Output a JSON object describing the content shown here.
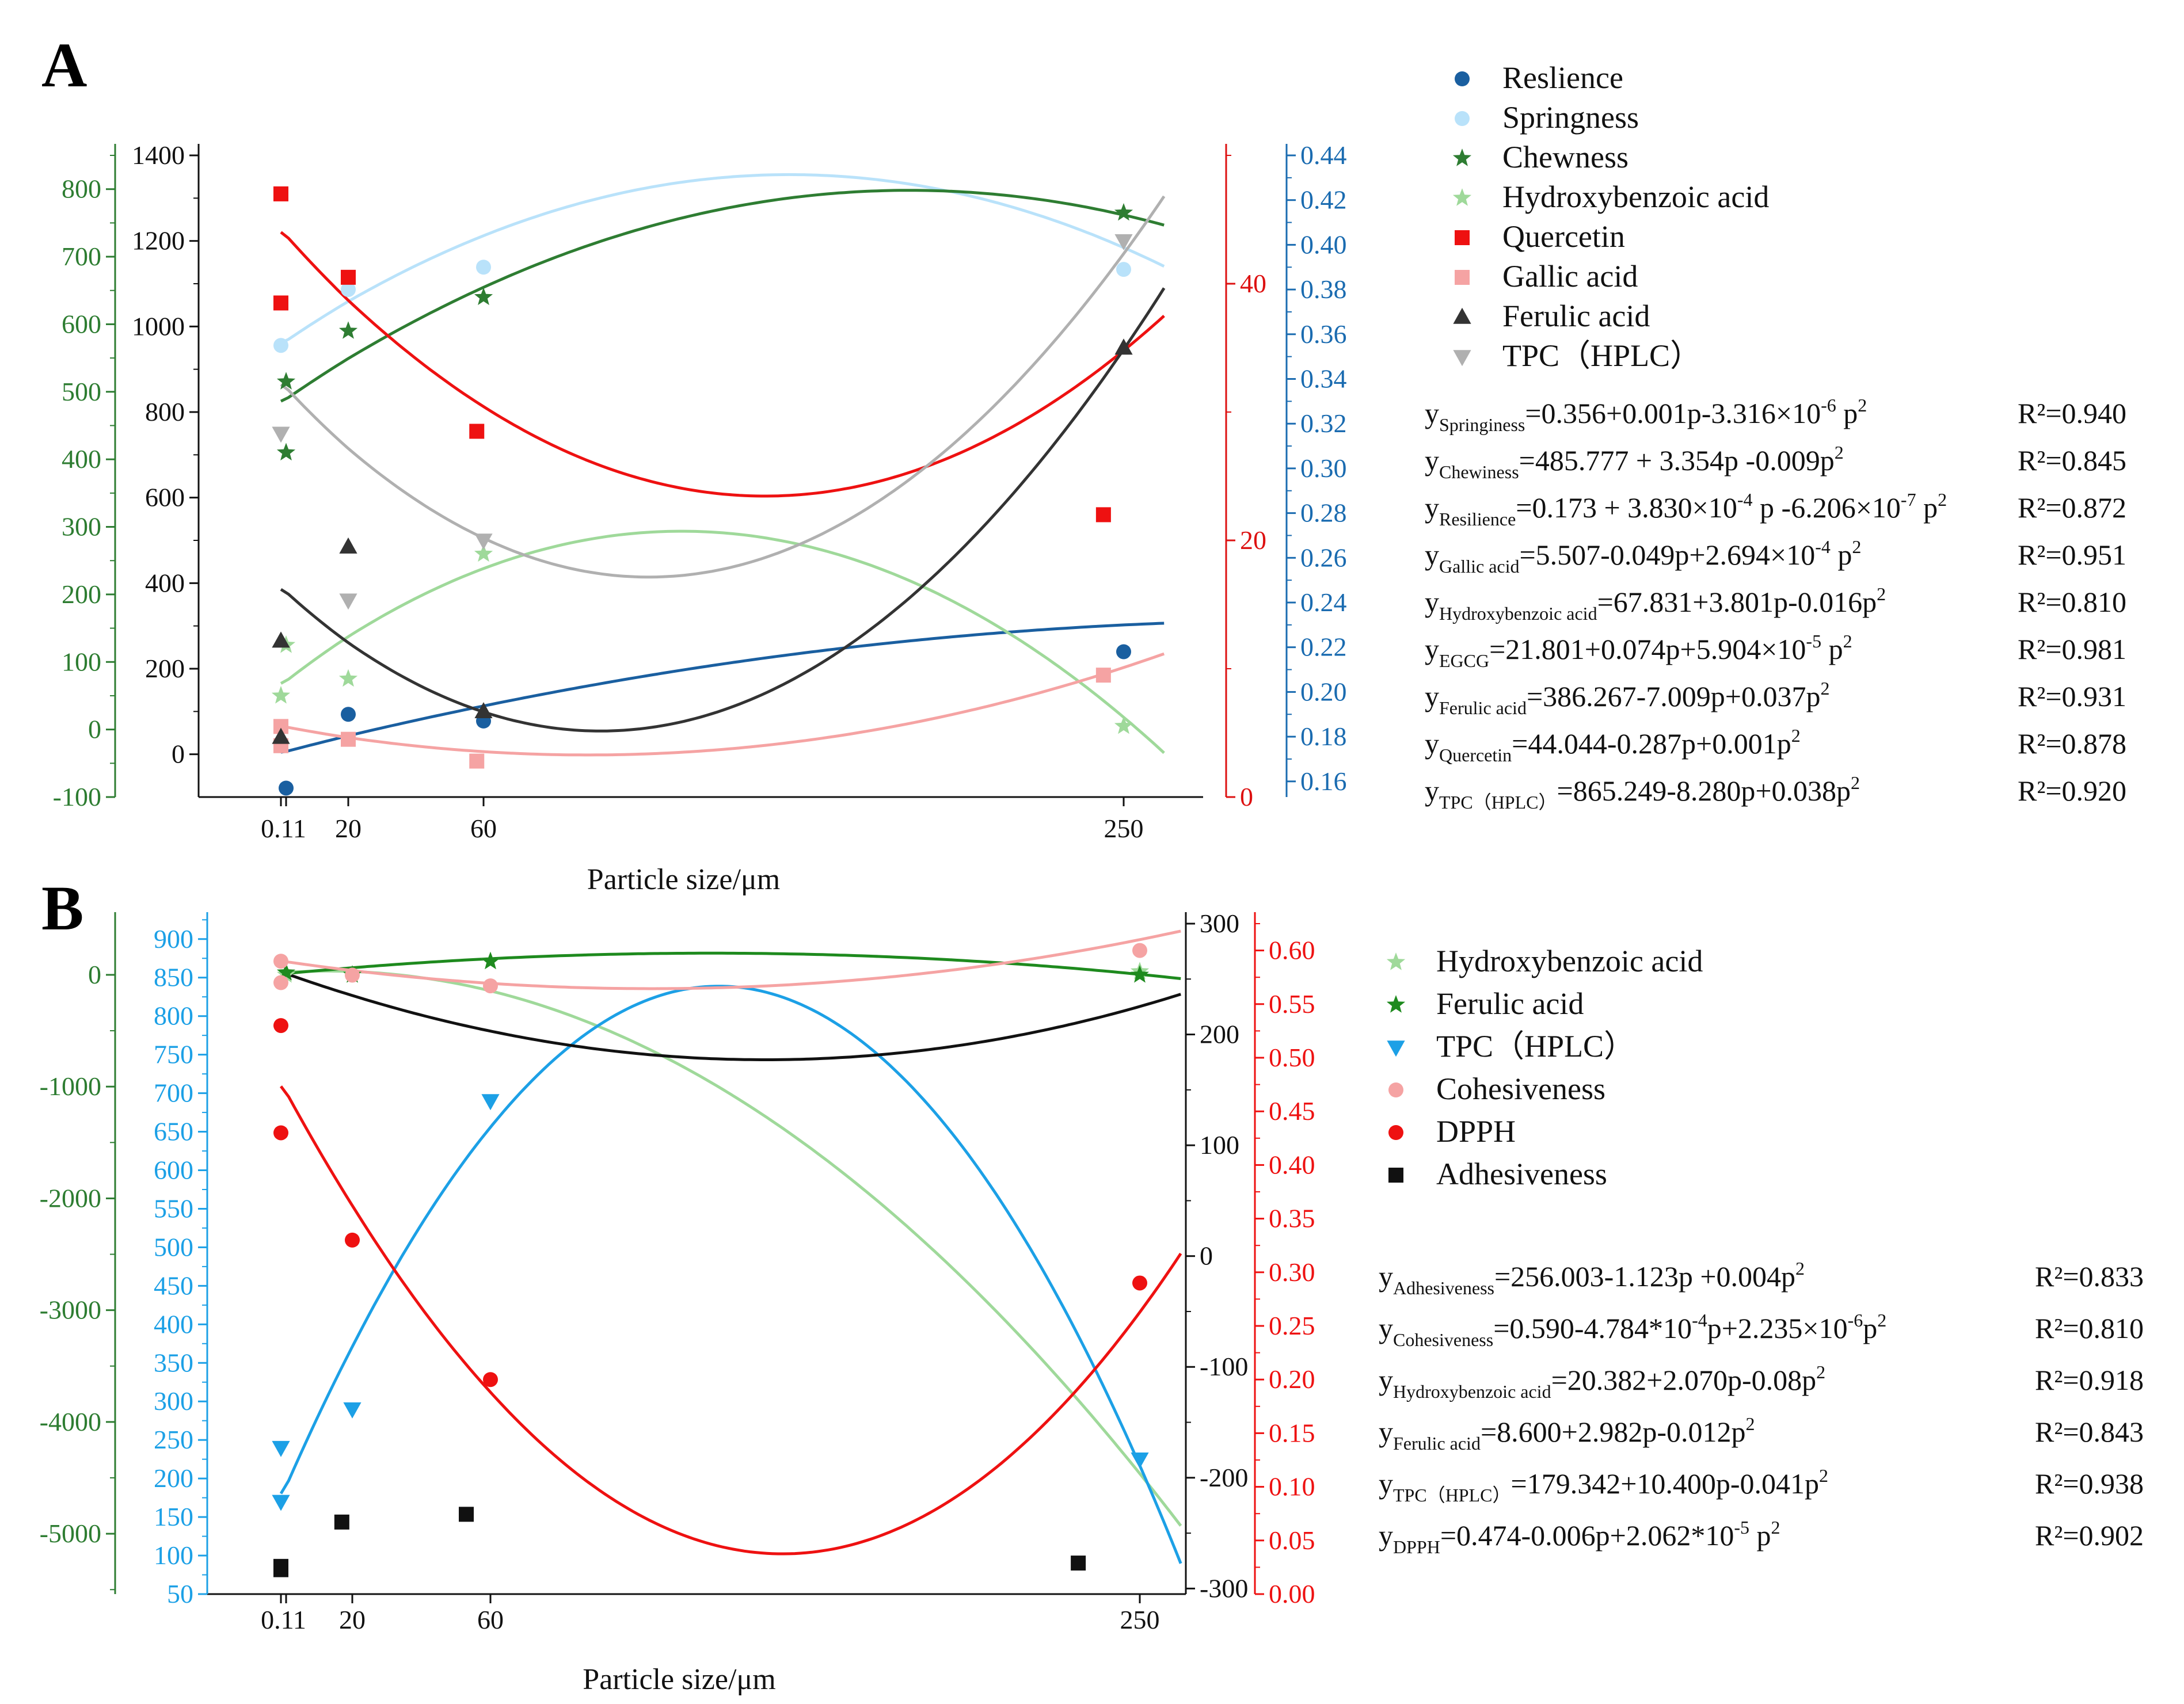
{
  "chart_data": [
    {
      "panel": "A",
      "type": "scatter",
      "xlabel": "Particle size/μm",
      "xticks": [
        "0.1",
        "1",
        "20",
        "60",
        "250"
      ],
      "xtick_values": [
        0.1,
        1,
        20,
        60,
        250
      ],
      "axes": [
        {
          "id": "g",
          "side": "left-outer",
          "color": "#2e7d32",
          "range": [
            -100,
            850
          ],
          "ticks": [
            -100,
            0,
            100,
            200,
            300,
            400,
            500,
            600,
            700,
            800
          ]
        },
        {
          "id": "k",
          "side": "left-inner",
          "color": "#111111",
          "range": [
            -100,
            1400
          ],
          "ticks": [
            0,
            200,
            400,
            600,
            800,
            1000,
            1200,
            1400
          ]
        },
        {
          "id": "r",
          "side": "right-inner",
          "color": "#dd1111",
          "range": [
            0,
            50
          ],
          "ticks": [
            0,
            20,
            40
          ]
        },
        {
          "id": "b",
          "side": "right-outer",
          "color": "#1a6bb0",
          "range": [
            0.153,
            0.44
          ],
          "ticks": [
            0.16,
            0.18,
            0.2,
            0.22,
            0.24,
            0.26,
            0.28,
            0.3,
            0.32,
            0.34,
            0.36,
            0.38,
            0.4,
            0.42,
            0.44
          ]
        }
      ],
      "series": [
        {
          "name": "Reslience",
          "marker": "circle",
          "color": "#1a5fa0",
          "axis": "b",
          "x": [
            1,
            20,
            60,
            250
          ],
          "y": [
            0.157,
            0.19,
            0.187,
            0.218
          ],
          "fit": [
            0.173,
            0.000383,
            -6.206e-07
          ]
        },
        {
          "name": "Springness",
          "marker": "circle",
          "color": "#b9e2fa",
          "axis": "b",
          "x": [
            0.1,
            20,
            60,
            250
          ],
          "y": [
            0.355,
            0.38,
            0.39,
            0.389
          ],
          "fit": [
            0.356,
            0.001,
            -3.316e-06
          ]
        },
        {
          "name": "Chewness",
          "marker": "star",
          "color": "#2e7d32",
          "axis": "g",
          "x": [
            1,
            1,
            20,
            60,
            250
          ],
          "y": [
            515,
            410,
            590,
            640,
            765
          ],
          "fit": [
            485.777,
            3.354,
            -0.009
          ]
        },
        {
          "name": "Hydroxybenzoic acid",
          "marker": "star",
          "color": "#9fd99a",
          "axis": "g",
          "x": [
            0.1,
            1,
            20,
            60,
            250
          ],
          "y": [
            50,
            125,
            75,
            260,
            5
          ],
          "fit": [
            67.831,
            3.801,
            -0.016
          ]
        },
        {
          "name": "Quercetin",
          "marker": "square",
          "color": "#ee1111",
          "axis": "r",
          "x": [
            0.1,
            0.1,
            20,
            58,
            244
          ],
          "y": [
            47,
            38.5,
            40.5,
            28.5,
            22
          ],
          "fit": [
            44.044,
            -0.287,
            0.001
          ]
        },
        {
          "name": "Gallic acid",
          "marker": "square",
          "color": "#f5a3a3",
          "axis": "r",
          "x": [
            0.1,
            0.1,
            20,
            58,
            244
          ],
          "y": [
            5.5,
            4,
            4.5,
            2.8,
            9.5
          ],
          "fit": [
            5.507,
            -0.049,
            0.0002694
          ]
        },
        {
          "name": "Ferulic acid",
          "marker": "triangle",
          "color": "#333333",
          "axis": "k",
          "x": [
            0.1,
            0.1,
            20,
            60,
            250
          ],
          "y": [
            40,
            265,
            485,
            100,
            950
          ],
          "fit": [
            386.267,
            -7.009,
            0.037
          ]
        },
        {
          "name": "TPC（HPLC）",
          "marker": "triangle-down",
          "color": "#b0b0b0",
          "axis": "k",
          "x": [
            0.1,
            20,
            60,
            250
          ],
          "y": [
            750,
            360,
            500,
            1200
          ],
          "fit": [
            865.249,
            -8.28,
            0.038
          ]
        }
      ],
      "equations": [
        {
          "sub": "Springiness",
          "main": "=0.356+0.001p-3.316×10",
          "exp": "-6",
          "tail": " p",
          "exp2": "2",
          "r2": "R²=0.940"
        },
        {
          "sub": "Chewiness",
          "main": "=485.777 + 3.354p -0.009p",
          "exp": "2",
          "tail": "",
          "exp2": "",
          "r2": "R²=0.845"
        },
        {
          "sub": "Resilience",
          "main": "=0.173 + 3.830×10",
          "exp": "-4",
          "tail": " p -6.206×10",
          "exp2": "-7",
          "tail2": " p",
          "exp3": "2",
          "r2": "R²=0.872"
        },
        {
          "sub": "Gallic acid",
          "main": "=5.507-0.049p+2.694×10",
          "exp": "-4",
          "tail": " p",
          "exp2": "2",
          "r2": "R²=0.951"
        },
        {
          "sub": "Hydroxybenzoic acid",
          "main": "=67.831+3.801p-0.016p",
          "exp": "2",
          "tail": "",
          "exp2": "",
          "r2": "R²=0.810"
        },
        {
          "sub": "EGCG",
          "main": "=21.801+0.074p+5.904×10",
          "exp": "-5",
          "tail": " p",
          "exp2": "2",
          "r2": "R²=0.981"
        },
        {
          "sub": "Ferulic acid",
          "main": "=386.267-7.009p+0.037p",
          "exp": "2",
          "tail": "",
          "exp2": "",
          "r2": "R²=0.931"
        },
        {
          "sub": "Quercetin",
          "main": "=44.044-0.287p+0.001p",
          "exp": "2",
          "tail": "",
          "exp2": "",
          "r2": "R²=0.878"
        },
        {
          "sub": "TPC（HPLC）",
          "main": "=865.249-8.280p+0.038p",
          "exp": "2",
          "tail": "",
          "exp2": "",
          "r2": "R²=0.920"
        }
      ]
    },
    {
      "panel": "B",
      "type": "scatter",
      "xlabel": "Particle size/μm",
      "xticks": [
        "0.1",
        "1",
        "20",
        "60",
        "250"
      ],
      "xtick_values": [
        0.1,
        1,
        20,
        60,
        250
      ],
      "axes": [
        {
          "id": "g",
          "side": "left-outer",
          "color": "#2e7d32",
          "range": [
            -5540,
            458
          ],
          "ticks": [
            0,
            -1000,
            -2000,
            -3000,
            -4000,
            -5000
          ]
        },
        {
          "id": "c",
          "side": "left-inner",
          "color": "#1ca0e6",
          "range": [
            50,
            920
          ],
          "ticks": [
            50,
            100,
            150,
            200,
            250,
            300,
            350,
            400,
            450,
            500,
            550,
            600,
            650,
            700,
            750,
            800,
            850,
            900
          ]
        },
        {
          "id": "k",
          "side": "right-inner",
          "color": "#111111",
          "range": [
            -305,
            300
          ],
          "ticks": [
            -300,
            -200,
            -100,
            0,
            100,
            200,
            300
          ]
        },
        {
          "id": "r",
          "side": "right-outer",
          "color": "#ee1111",
          "range": [
            0,
            0.625
          ],
          "ticks": [
            0.0,
            0.05,
            0.1,
            0.15,
            0.2,
            0.25,
            0.3,
            0.35,
            0.4,
            0.45,
            0.5,
            0.55,
            0.6
          ]
        }
      ],
      "series": [
        {
          "name": "Hydroxybenzoic acid",
          "marker": "star",
          "color": "#9fd99a",
          "axis": "g",
          "x": [
            1,
            20,
            60,
            250
          ],
          "y": [
            0,
            0,
            120,
            30
          ],
          "fit": [
            20.382,
            2.07,
            -0.08
          ]
        },
        {
          "name": "Ferulic acid",
          "marker": "star",
          "color": "#1e8a1e",
          "axis": "g",
          "x": [
            1,
            20,
            60,
            250
          ],
          "y": [
            20,
            0,
            120,
            0
          ],
          "fit": [
            8.6,
            2.982,
            -0.012
          ]
        },
        {
          "name": "TPC（HPLC）",
          "marker": "triangle-down",
          "color": "#1ca0e6",
          "axis": "c",
          "x": [
            0.1,
            0.1,
            20,
            60,
            250
          ],
          "y": [
            240,
            170,
            290,
            690,
            225
          ],
          "fit": [
            179.342,
            10.4,
            -0.041
          ]
        },
        {
          "name": "Cohesiveness",
          "marker": "circle",
          "color": "#f5a3a3",
          "axis": "r",
          "x": [
            0.1,
            0.1,
            20,
            60,
            250
          ],
          "y": [
            0.59,
            0.57,
            0.577,
            0.567,
            0.6
          ],
          "fit": [
            0.59,
            -0.0004784,
            2.235e-06
          ]
        },
        {
          "name": "DPPH",
          "marker": "circle",
          "color": "#ee1111",
          "axis": "r",
          "x": [
            0.1,
            0.1,
            20,
            60,
            250
          ],
          "y": [
            0.53,
            0.43,
            0.33,
            0.2,
            0.29
          ],
          "fit": [
            0.474,
            -0.006,
            2.062e-05
          ]
        },
        {
          "name": "Adhesiveness",
          "marker": "square",
          "color": "#111111",
          "axis": "k",
          "x": [
            0.1,
            0.1,
            17,
            53,
            232
          ],
          "y": [
            -283,
            -280,
            -240,
            -233,
            -277
          ],
          "fit": [
            256.003,
            -1.123,
            0.004
          ]
        }
      ],
      "equations": [
        {
          "sub": "Adhesiveness",
          "main": "=256.003-1.123p +0.004p",
          "exp": "2",
          "tail": "",
          "exp2": "",
          "r2": "R²=0.833"
        },
        {
          "sub": "Cohesiveness",
          "main": "=0.590-4.784*10",
          "exp": "-4",
          "tail": "p+2.235×10",
          "exp2": "-6",
          "tail2": "p",
          "exp3": "2",
          "r2": "R²=0.810"
        },
        {
          "sub": "Hydroxybenzoic acid",
          "main": "=20.382+2.070p-0.08p",
          "exp": "2",
          "tail": "",
          "exp2": "",
          "r2": "R²=0.918"
        },
        {
          "sub": "Ferulic acid",
          "main": "=8.600+2.982p-0.012p",
          "exp": "2",
          "tail": "",
          "exp2": "",
          "r2": "R²=0.843"
        },
        {
          "sub": "TPC（HPLC）",
          "main": "=179.342+10.400p-0.041p",
          "exp": "2",
          "tail": "",
          "exp2": "",
          "r2": "R²=0.938"
        },
        {
          "sub": "DPPH",
          "main": "=0.474-0.006p+2.062*10",
          "exp": "-5",
          "tail": " p",
          "exp2": "2",
          "r2": "R²=0.902"
        }
      ]
    }
  ]
}
